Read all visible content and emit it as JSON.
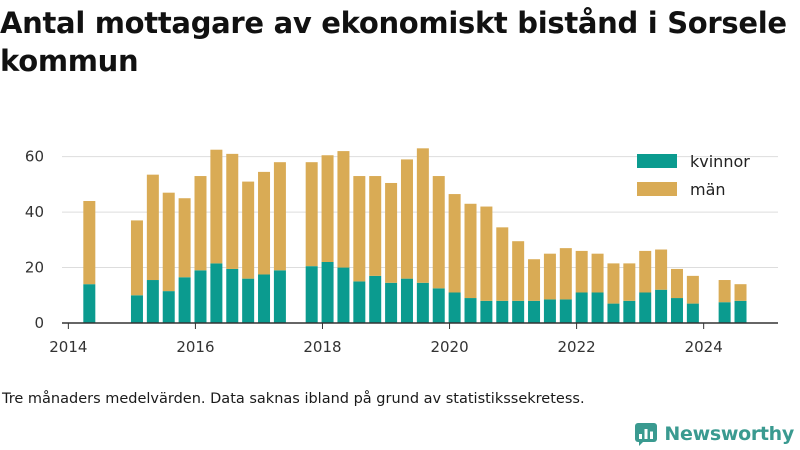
{
  "chart_data": {
    "type": "bar",
    "stacked": true,
    "title": "Antal mottagare av ekonomiskt bistånd i Sorsele kommun",
    "xlabel": "",
    "ylabel": "",
    "ylim": [
      0,
      66
    ],
    "y_ticks": [
      0,
      20,
      40,
      60
    ],
    "x_ticks": [
      2014,
      2016,
      2018,
      2020,
      2022,
      2024
    ],
    "xlim": [
      2013.9,
      2025.17
    ],
    "grid": true,
    "legend_position": "top-right",
    "x": [
      2014.33,
      2015.08,
      2015.33,
      2015.58,
      2015.83,
      2016.08,
      2016.33,
      2016.58,
      2016.83,
      2017.08,
      2017.33,
      2017.83,
      2018.08,
      2018.33,
      2018.58,
      2018.83,
      2019.08,
      2019.33,
      2019.58,
      2019.83,
      2020.08,
      2020.33,
      2020.58,
      2020.83,
      2021.08,
      2021.33,
      2021.58,
      2021.83,
      2022.08,
      2022.33,
      2022.58,
      2022.83,
      2023.08,
      2023.33,
      2023.58,
      2023.83,
      2024.33,
      2024.58
    ],
    "series": [
      {
        "name": "kvinnor",
        "color": "#0b9b8f",
        "values": [
          14,
          10,
          15.5,
          11.5,
          16.5,
          19,
          21.5,
          19.5,
          16,
          17.5,
          19,
          20.5,
          22,
          20,
          15,
          17,
          14.5,
          16,
          14.5,
          12.5,
          11,
          9,
          8,
          8,
          8,
          8,
          8.5,
          8.5,
          11,
          11,
          7,
          8,
          11,
          12,
          9,
          7,
          7.5,
          8
        ]
      },
      {
        "name": "män",
        "color": "#d9ab55",
        "values": [
          30,
          27,
          38,
          35.5,
          28.5,
          34,
          41,
          41.5,
          35,
          37,
          39,
          37.5,
          38.5,
          42,
          38,
          36,
          36,
          43,
          48.5,
          40.5,
          35.5,
          34,
          34,
          26.5,
          21.5,
          15,
          16.5,
          18.5,
          15,
          14,
          14.5,
          13.5,
          15,
          14.5,
          10.5,
          10,
          8,
          6
        ]
      }
    ]
  },
  "footer": {
    "note": "Tre månaders medelvärden. Data saknas ibland på grund av statistikssekretess.",
    "brand_name": "Newsworthy",
    "brand_color": "#3a9a90"
  }
}
